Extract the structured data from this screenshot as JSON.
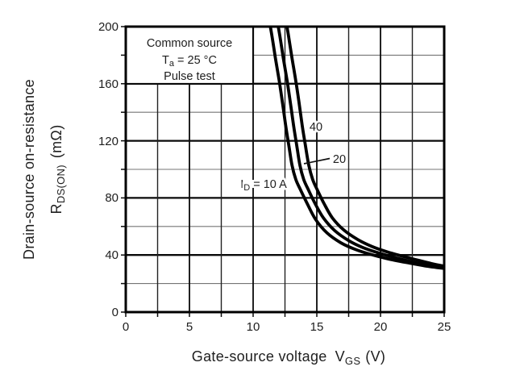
{
  "figure": {
    "background": "#ffffff",
    "ink_color": "#000000"
  },
  "chart_data": {
    "type": "line",
    "title": "",
    "xlabel": {
      "text": "Gate-source voltage",
      "var": "V",
      "var_sub": "GS",
      "unit": "(V)"
    },
    "ylabel": {
      "line1": "Drain-source on-resistance",
      "var": "R",
      "var_sub": "DS(ON)",
      "unit": "(mΩ)"
    },
    "xlim": [
      0,
      25
    ],
    "ylim": [
      0,
      200
    ],
    "xticks": [
      "0",
      "5",
      "10",
      "15",
      "20",
      "25"
    ],
    "yticks": [
      "0",
      "40",
      "80",
      "120",
      "160",
      "200"
    ],
    "x_minor_step": 2.5,
    "y_minor_step": 20,
    "grid": "both",
    "legend_position": "inline-curve-labels",
    "annotation": {
      "line1": "Common source",
      "line2_pre": "T",
      "line2_sub": "a",
      "line2_post": "= 25 °C",
      "line3": "Pulse test"
    },
    "curve_labels": {
      "label_40": "40",
      "label_20": "20",
      "id_pre": "I",
      "id_sub": "D",
      "id_post": "= 10 A"
    },
    "series": [
      {
        "name": "ID = 10 A",
        "color": "#000000",
        "points": [
          [
            11.15,
            210
          ],
          [
            11.45,
            195
          ],
          [
            11.75,
            178
          ],
          [
            12.05,
            162
          ],
          [
            12.3,
            147
          ],
          [
            12.55,
            131
          ],
          [
            12.8,
            117
          ],
          [
            13.05,
            103
          ],
          [
            13.35,
            93
          ],
          [
            13.7,
            86
          ],
          [
            14.25,
            76
          ],
          [
            14.9,
            65
          ],
          [
            15.8,
            55.5
          ],
          [
            16.9,
            48.5
          ],
          [
            18.0,
            44
          ],
          [
            19.2,
            40.5
          ],
          [
            20.5,
            37.5
          ],
          [
            22.0,
            34.8
          ],
          [
            23.5,
            32.4
          ],
          [
            25.0,
            30.6
          ]
        ]
      },
      {
        "name": "ID = 20 A",
        "color": "#000000",
        "points": [
          [
            11.77,
            210
          ],
          [
            12.07,
            195
          ],
          [
            12.37,
            178
          ],
          [
            12.67,
            162
          ],
          [
            12.92,
            147
          ],
          [
            13.17,
            131
          ],
          [
            13.42,
            117
          ],
          [
            13.67,
            103
          ],
          [
            13.97,
            93
          ],
          [
            14.32,
            86
          ],
          [
            14.87,
            76
          ],
          [
            15.52,
            66
          ],
          [
            16.42,
            57
          ],
          [
            17.52,
            50
          ],
          [
            18.62,
            45.2
          ],
          [
            19.82,
            41.5
          ],
          [
            21.1,
            38.3
          ],
          [
            22.5,
            35.2
          ],
          [
            23.7,
            33
          ],
          [
            25.0,
            31.3
          ]
        ]
      },
      {
        "name": "ID = 40 A",
        "color": "#000000",
        "points": [
          [
            12.45,
            210
          ],
          [
            12.75,
            195
          ],
          [
            13.05,
            178
          ],
          [
            13.35,
            162
          ],
          [
            13.6,
            147
          ],
          [
            13.85,
            131
          ],
          [
            14.1,
            117
          ],
          [
            14.37,
            103
          ],
          [
            14.67,
            93
          ],
          [
            15.02,
            86
          ],
          [
            15.57,
            76
          ],
          [
            16.22,
            66
          ],
          [
            17.12,
            57.5
          ],
          [
            18.22,
            50.8
          ],
          [
            19.32,
            46
          ],
          [
            20.52,
            42.2
          ],
          [
            21.8,
            39
          ],
          [
            23.0,
            36.2
          ],
          [
            24.0,
            34
          ],
          [
            25.0,
            32.2
          ]
        ]
      }
    ]
  }
}
